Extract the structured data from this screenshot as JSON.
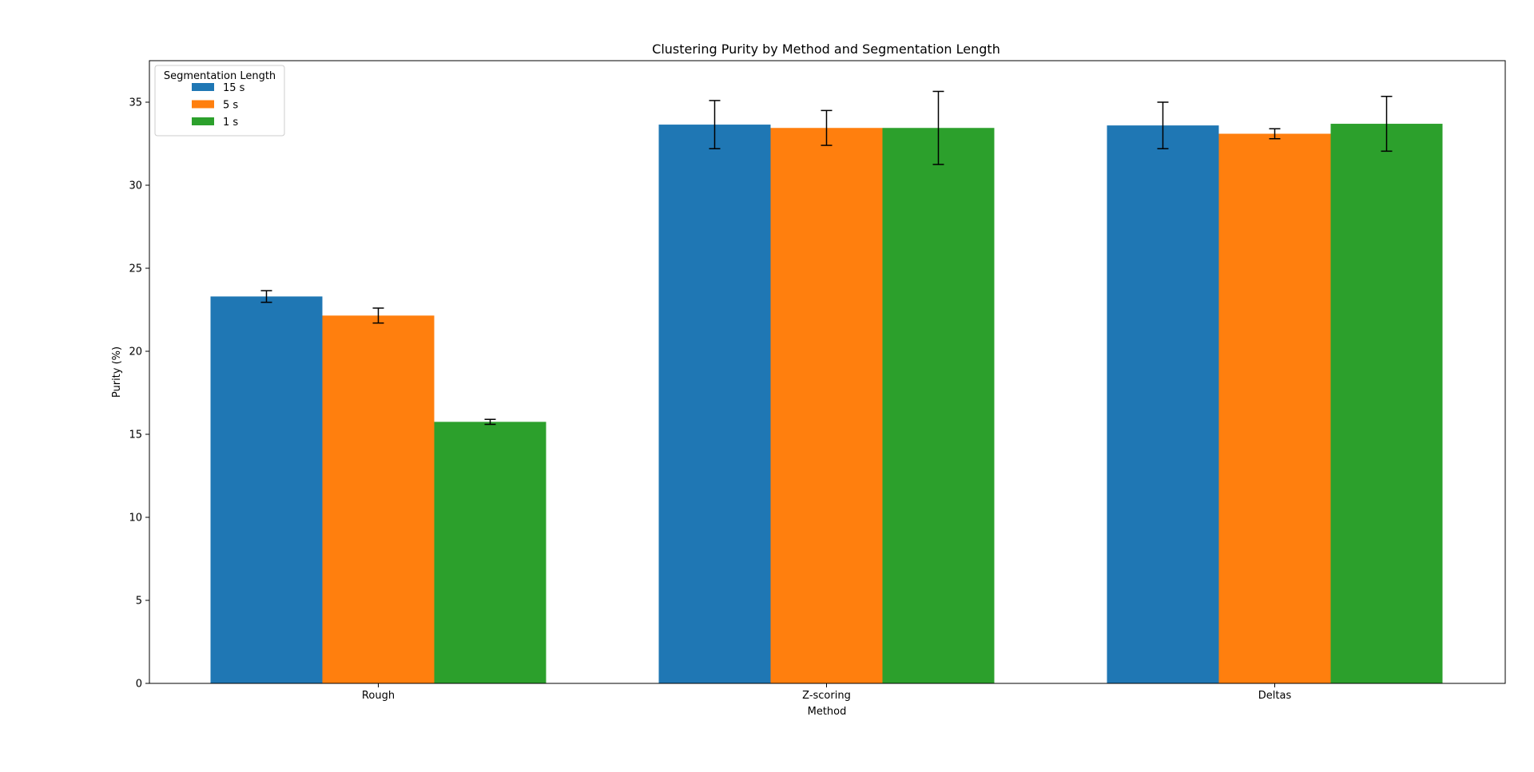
{
  "chart_data": {
    "type": "bar",
    "title": "Clustering Purity by Method and Segmentation Length",
    "xlabel": "Method",
    "ylabel": "Purity (%)",
    "categories": [
      "Rough",
      "Z-scoring",
      "Deltas"
    ],
    "ylim": [
      0,
      37.5
    ],
    "yticks": [
      0,
      5,
      10,
      15,
      20,
      25,
      30,
      35
    ],
    "grid": false,
    "legend": {
      "title": "Segmentation Length",
      "placement": "top-left"
    },
    "series": [
      {
        "name": "15 s",
        "color": "#1f77b4",
        "values": [
          23.3,
          33.65,
          33.6
        ],
        "errors": [
          0.35,
          1.45,
          1.4
        ]
      },
      {
        "name": "5 s",
        "color": "#ff7f0e",
        "values": [
          22.15,
          33.45,
          33.1
        ],
        "errors": [
          0.45,
          1.05,
          0.3
        ]
      },
      {
        "name": "1 s",
        "color": "#2ca02c",
        "values": [
          15.75,
          33.45,
          33.7
        ],
        "errors": [
          0.15,
          2.2,
          1.65
        ]
      }
    ]
  }
}
